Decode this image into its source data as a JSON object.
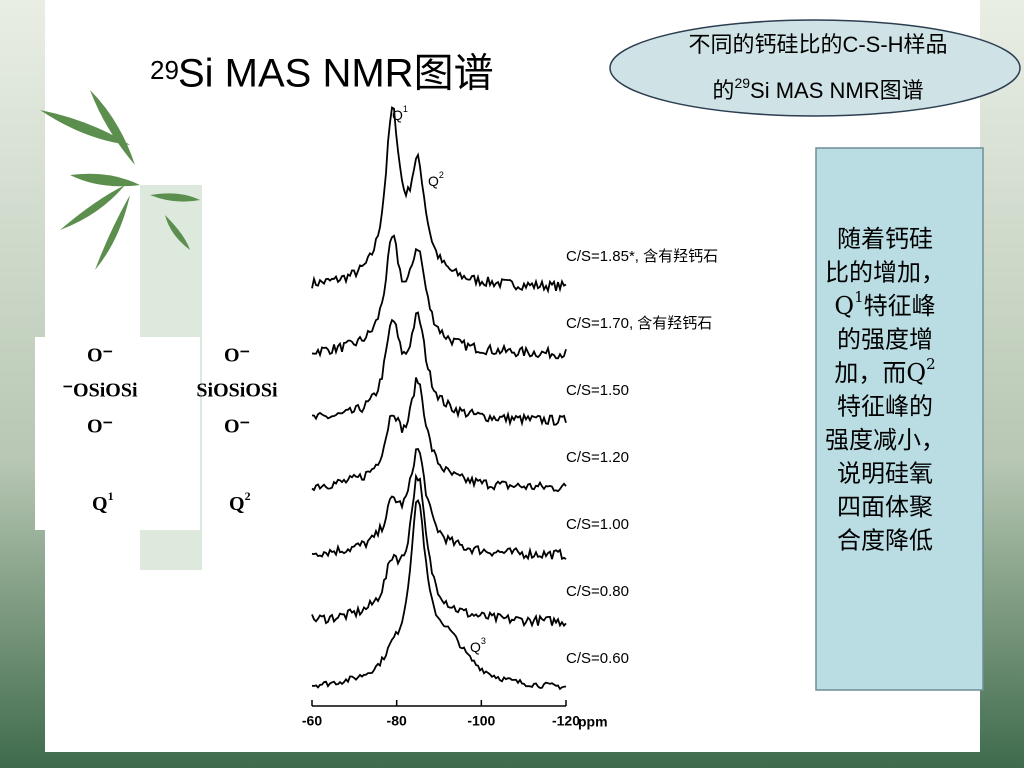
{
  "title": {
    "sup": "29",
    "text": "Si MAS NMR图谱"
  },
  "callout": {
    "line1": "不同的钙硅比的C-S-H样品",
    "line2": [
      "的",
      "29",
      "Si MAS NMR图谱"
    ]
  },
  "side": {
    "lines": [
      [
        "随着钙硅"
      ],
      [
        "比的增加，"
      ],
      [
        "Q",
        "1",
        "特征峰"
      ],
      [
        "的强度增"
      ],
      [
        "加，而Q",
        "2"
      ],
      [
        "特征峰的"
      ],
      [
        "强度减小，"
      ],
      [
        "说明硅氧"
      ],
      [
        "四面体聚"
      ],
      [
        "合度降低"
      ]
    ]
  },
  "structures": [
    {
      "top": "O⁻",
      "middle": "⁻OSiOSi",
      "bottom": "O⁻",
      "label": [
        "Q",
        "1"
      ]
    },
    {
      "top": "O⁻",
      "middle": "SiOSiOSi",
      "bottom": "O⁻",
      "label": [
        "Q",
        "2"
      ]
    }
  ],
  "figure": {
    "peaks": [
      [
        "Q",
        "1"
      ],
      [
        "Q",
        "2"
      ],
      [
        "Q",
        "3"
      ]
    ],
    "spectra": [
      "C/S=1.85*, 含有羟钙石",
      "C/S=1.70, 含有羟钙石",
      "C/S=1.50",
      "C/S=1.20",
      "C/S=1.00",
      "C/S=0.80",
      "C/S=0.60"
    ],
    "xticks": [
      -60,
      -80,
      -100,
      -120
    ],
    "xunit": "ppm"
  }
}
